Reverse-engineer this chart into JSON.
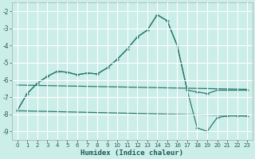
{
  "xlabel": "Humidex (Indice chaleur)",
  "bg_color": "#cceee8",
  "line_color": "#2a7a70",
  "grid_color": "#ffffff",
  "grid_minor_color": "#e0f0ee",
  "xlim": [
    -0.5,
    23.5
  ],
  "ylim": [
    -9.5,
    -1.5
  ],
  "yticks": [
    -9,
    -8,
    -7,
    -6,
    -5,
    -4,
    -3,
    -2
  ],
  "xticks": [
    0,
    1,
    2,
    3,
    4,
    5,
    6,
    7,
    8,
    9,
    10,
    11,
    12,
    13,
    14,
    15,
    16,
    17,
    18,
    19,
    20,
    21,
    22,
    23
  ],
  "line1_x": [
    0,
    1,
    2,
    3,
    4,
    5,
    6,
    7,
    8,
    9,
    10,
    11,
    12,
    13,
    14,
    15,
    16,
    17,
    18,
    19,
    20,
    21,
    22,
    23
  ],
  "line1_y": [
    -7.8,
    -6.8,
    -6.2,
    -5.8,
    -5.5,
    -5.55,
    -5.7,
    -5.6,
    -5.65,
    -5.3,
    -4.8,
    -4.2,
    -3.5,
    -3.1,
    -2.2,
    -2.55,
    -4.0,
    -6.6,
    -6.7,
    -6.8,
    -6.6,
    -6.6,
    -6.6,
    -6.6
  ],
  "line2_x": [
    0,
    1,
    2,
    3,
    4,
    5,
    6,
    7,
    8,
    9,
    10,
    11,
    12,
    13,
    14,
    15,
    16,
    17,
    18,
    19,
    20,
    21,
    22,
    23
  ],
  "line2_y": [
    -7.8,
    -6.8,
    -6.2,
    -5.8,
    -5.5,
    -5.55,
    -5.7,
    -5.6,
    -5.65,
    -5.3,
    -4.8,
    -4.2,
    -3.5,
    -3.1,
    -2.2,
    -2.55,
    -4.0,
    -6.6,
    -8.8,
    -9.0,
    -8.2,
    -8.1,
    -8.1,
    -8.1
  ],
  "line3_x": [
    0,
    23
  ],
  "line3_y": [
    -6.3,
    -6.55
  ],
  "line4_x": [
    0,
    23
  ],
  "line4_y": [
    -7.8,
    -8.1
  ]
}
